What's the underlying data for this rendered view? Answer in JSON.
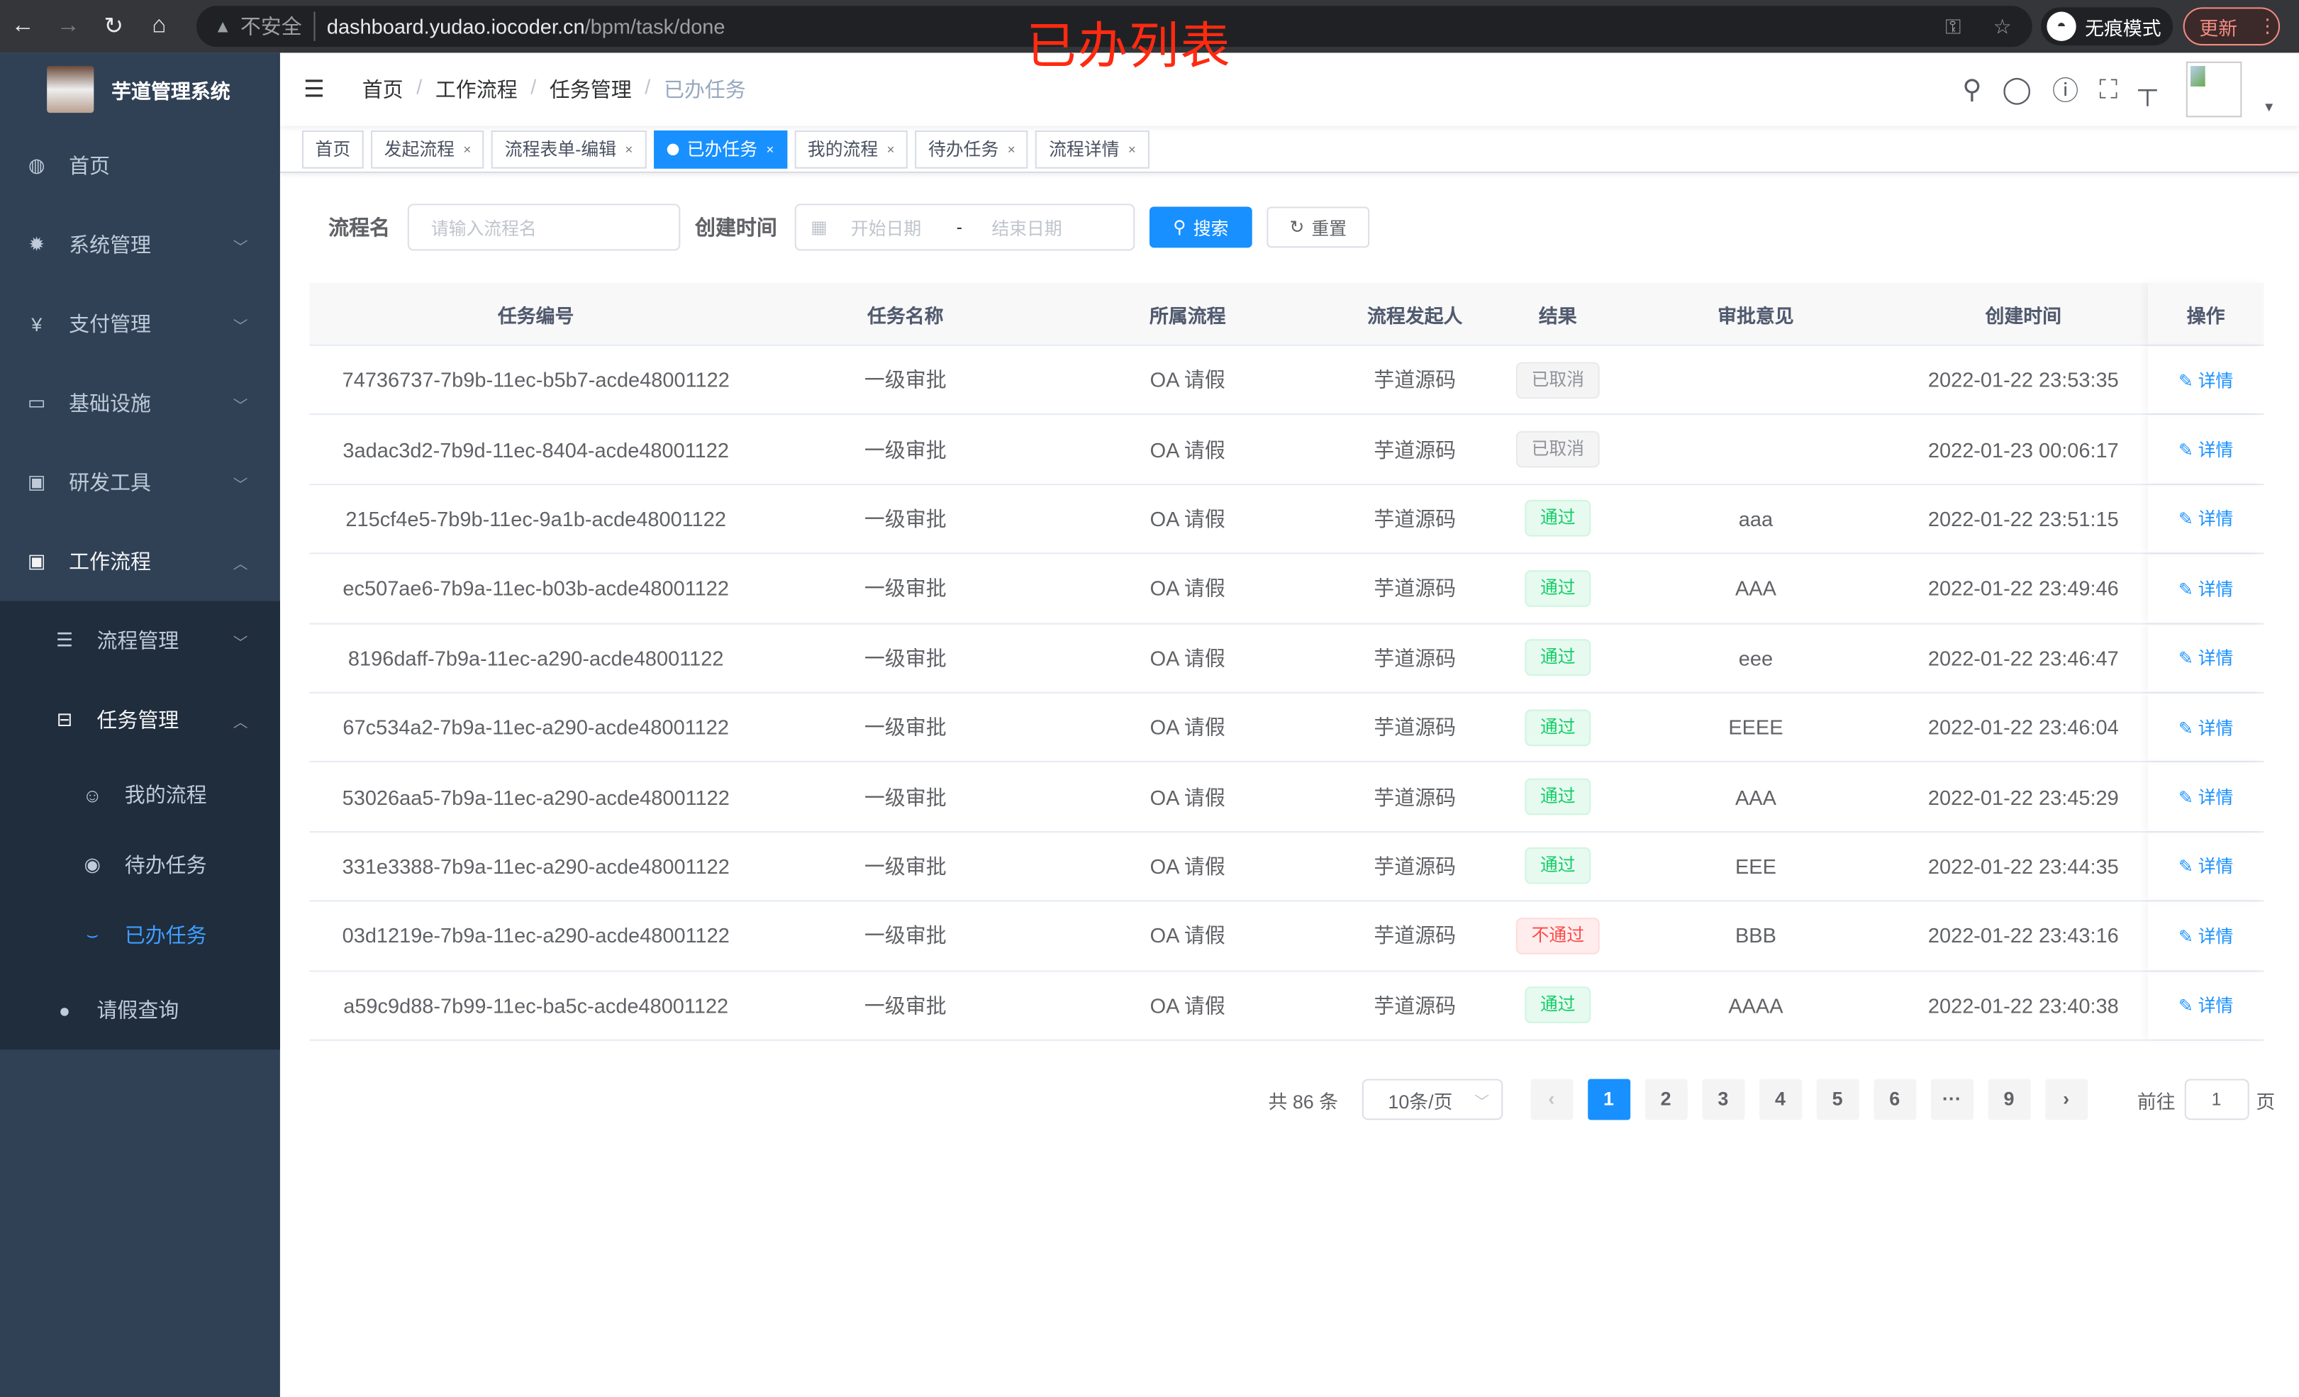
{
  "browser": {
    "insecure": "不安全",
    "url_host": "dashboard.yudao.iocoder.cn",
    "url_path": "/bpm/task/done",
    "incognito": "无痕模式",
    "update": "更新"
  },
  "overlay_title": "已办列表",
  "sidebar": {
    "title": "芋道管理系统",
    "items": [
      {
        "label": "首页",
        "icon": "dashboard-icon"
      },
      {
        "label": "系统管理",
        "icon": "gear-icon"
      },
      {
        "label": "支付管理",
        "icon": "yen-icon"
      },
      {
        "label": "基础设施",
        "icon": "monitor-icon"
      },
      {
        "label": "研发工具",
        "icon": "toolbox-icon"
      },
      {
        "label": "工作流程",
        "icon": "toolbox-icon"
      }
    ],
    "workflow_children": [
      {
        "label": "流程管理"
      },
      {
        "label": "任务管理"
      }
    ],
    "task_children": [
      {
        "label": "我的流程"
      },
      {
        "label": "待办任务"
      },
      {
        "label": "已办任务"
      }
    ],
    "leave": "请假查询"
  },
  "breadcrumb": [
    "首页",
    "工作流程",
    "任务管理",
    "已办任务"
  ],
  "tags": [
    {
      "label": "首页"
    },
    {
      "label": "发起流程"
    },
    {
      "label": "流程表单-编辑"
    },
    {
      "label": "已办任务",
      "active": true
    },
    {
      "label": "我的流程"
    },
    {
      "label": "待办任务"
    },
    {
      "label": "流程详情"
    }
  ],
  "search": {
    "name_label": "流程名",
    "name_placeholder": "请输入流程名",
    "time_label": "创建时间",
    "start_placeholder": "开始日期",
    "sep": "-",
    "end_placeholder": "结束日期",
    "search_btn": "搜索",
    "reset_btn": "重置"
  },
  "table": {
    "columns": [
      "任务编号",
      "任务名称",
      "所属流程",
      "流程发起人",
      "结果",
      "审批意见",
      "创建时间",
      "操作"
    ],
    "action": "详情",
    "rows": [
      {
        "id": "74736737-7b9b-11ec-b5b7-acde48001122",
        "name": "一级审批",
        "process": "OA 请假",
        "starter": "芋道源码",
        "result": "已取消",
        "status": "cancel",
        "comment": "",
        "time": "2022-01-22 23:53:35"
      },
      {
        "id": "3adac3d2-7b9d-11ec-8404-acde48001122",
        "name": "一级审批",
        "process": "OA 请假",
        "starter": "芋道源码",
        "result": "已取消",
        "status": "cancel",
        "comment": "",
        "time": "2022-01-23 00:06:17"
      },
      {
        "id": "215cf4e5-7b9b-11ec-9a1b-acde48001122",
        "name": "一级审批",
        "process": "OA 请假",
        "starter": "芋道源码",
        "result": "通过",
        "status": "pass",
        "comment": "aaa",
        "time": "2022-01-22 23:51:15"
      },
      {
        "id": "ec507ae6-7b9a-11ec-b03b-acde48001122",
        "name": "一级审批",
        "process": "OA 请假",
        "starter": "芋道源码",
        "result": "通过",
        "status": "pass",
        "comment": "AAA",
        "time": "2022-01-22 23:49:46"
      },
      {
        "id": "8196daff-7b9a-11ec-a290-acde48001122",
        "name": "一级审批",
        "process": "OA 请假",
        "starter": "芋道源码",
        "result": "通过",
        "status": "pass",
        "comment": "eee",
        "time": "2022-01-22 23:46:47"
      },
      {
        "id": "67c534a2-7b9a-11ec-a290-acde48001122",
        "name": "一级审批",
        "process": "OA 请假",
        "starter": "芋道源码",
        "result": "通过",
        "status": "pass",
        "comment": "EEEE",
        "time": "2022-01-22 23:46:04"
      },
      {
        "id": "53026aa5-7b9a-11ec-a290-acde48001122",
        "name": "一级审批",
        "process": "OA 请假",
        "starter": "芋道源码",
        "result": "通过",
        "status": "pass",
        "comment": "AAA",
        "time": "2022-01-22 23:45:29"
      },
      {
        "id": "331e3388-7b9a-11ec-a290-acde48001122",
        "name": "一级审批",
        "process": "OA 请假",
        "starter": "芋道源码",
        "result": "通过",
        "status": "pass",
        "comment": "EEE",
        "time": "2022-01-22 23:44:35"
      },
      {
        "id": "03d1219e-7b9a-11ec-a290-acde48001122",
        "name": "一级审批",
        "process": "OA 请假",
        "starter": "芋道源码",
        "result": "不通过",
        "status": "reject",
        "comment": "BBB",
        "time": "2022-01-22 23:43:16"
      },
      {
        "id": "a59c9d88-7b99-11ec-ba5c-acde48001122",
        "name": "一级审批",
        "process": "OA 请假",
        "starter": "芋道源码",
        "result": "通过",
        "status": "pass",
        "comment": "AAAA",
        "time": "2022-01-22 23:40:38"
      }
    ]
  },
  "pagination": {
    "total": "共 86 条",
    "page_size": "10条/页",
    "pages": [
      "1",
      "2",
      "3",
      "4",
      "5",
      "6",
      "···",
      "9"
    ],
    "current": "1",
    "goto_label": "前往",
    "goto_value": "1",
    "page_suffix": "页"
  },
  "colors": {
    "primary": "#1890ff",
    "sidebar": "#304156",
    "pass": "#13ce66",
    "reject": "#ff4949",
    "cancel": "#909399"
  }
}
